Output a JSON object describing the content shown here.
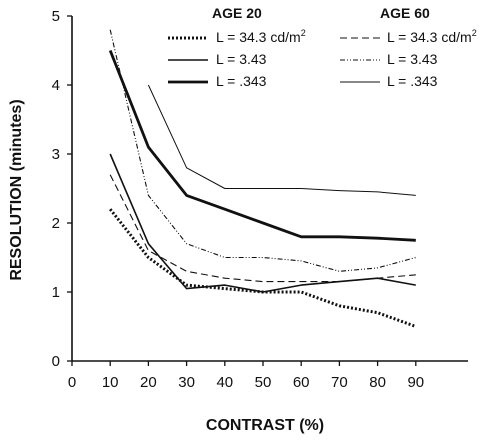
{
  "chart_data": {
    "type": "line",
    "xlabel": "CONTRAST (%)",
    "ylabel": "RESOLUTION (minutes)",
    "xlim": [
      0,
      95
    ],
    "ylim": [
      0,
      5
    ],
    "x_ticks": [
      "0",
      "10",
      "20",
      "30",
      "40",
      "50",
      "60",
      "70",
      "80",
      "90"
    ],
    "y_ticks": [
      "0",
      "1",
      "2",
      "3",
      "4",
      "5"
    ],
    "grid": false,
    "legend_position": "top-right",
    "legend_groups": [
      "AGE 20",
      "AGE 60"
    ],
    "series": [
      {
        "name": "L = 34.3 cd/m²",
        "group": "AGE 20",
        "label_main": "L = 34.3 cd/m",
        "label_sup": "2",
        "style": "dotted-bold",
        "x": [
          10,
          20,
          30,
          40,
          50,
          60,
          70,
          80,
          90
        ],
        "y": [
          2.2,
          1.5,
          1.1,
          1.05,
          1.0,
          1.0,
          0.8,
          0.7,
          0.5
        ]
      },
      {
        "name": "L = 3.43",
        "group": "AGE 20",
        "label_main": "L = 3.43",
        "label_sup": "",
        "style": "medium",
        "x": [
          10,
          20,
          30,
          40,
          50,
          60,
          70,
          80,
          90
        ],
        "y": [
          3.0,
          1.7,
          1.05,
          1.1,
          1.0,
          1.1,
          1.15,
          1.2,
          1.1
        ]
      },
      {
        "name": "L = .343",
        "group": "AGE 20",
        "label_main": "L = .343",
        "label_sup": "",
        "style": "thick",
        "x": [
          10,
          20,
          30,
          40,
          50,
          60,
          70,
          80,
          90
        ],
        "y": [
          4.5,
          3.1,
          2.4,
          2.2,
          2.0,
          1.8,
          1.8,
          1.78,
          1.75
        ]
      },
      {
        "name": "L = 34.3 cd/m²",
        "group": "AGE 60",
        "label_main": "L = 34.3 cd/m",
        "label_sup": "2",
        "style": "dashed",
        "x": [
          10,
          20,
          30,
          40,
          50,
          60,
          70,
          80,
          90
        ],
        "y": [
          2.7,
          1.6,
          1.3,
          1.2,
          1.15,
          1.15,
          1.15,
          1.2,
          1.25
        ]
      },
      {
        "name": "L = 3.43",
        "group": "AGE 60",
        "label_main": "L = 3.43",
        "label_sup": "",
        "style": "dash-dot",
        "x": [
          10,
          20,
          30,
          40,
          50,
          60,
          70,
          80,
          90
        ],
        "y": [
          4.8,
          2.4,
          1.7,
          1.5,
          1.5,
          1.45,
          1.3,
          1.35,
          1.5
        ]
      },
      {
        "name": "L = .343",
        "group": "AGE 60",
        "label_main": "L = .343",
        "label_sup": "",
        "style": "thin",
        "x": [
          20,
          30,
          40,
          50,
          60,
          70,
          80,
          90
        ],
        "y": [
          4.0,
          2.8,
          2.5,
          2.5,
          2.5,
          2.47,
          2.45,
          2.4
        ]
      }
    ]
  }
}
